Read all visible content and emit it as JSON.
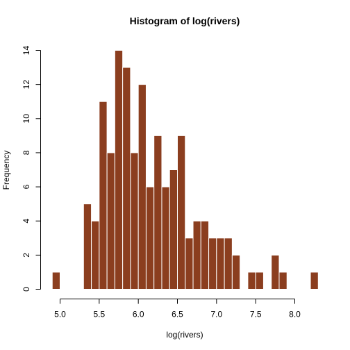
{
  "chart_data": {
    "type": "bar",
    "title": "Histogram of log(rivers)",
    "xlabel": "log(rivers)",
    "ylabel": "Frequency",
    "bar_color": "#8B3E1F",
    "bar_border_color": "#ffffff",
    "bin_width": 0.1,
    "bins": [
      {
        "start": 4.9,
        "end": 5.0,
        "count": 1
      },
      {
        "start": 5.0,
        "end": 5.1,
        "count": 0
      },
      {
        "start": 5.1,
        "end": 5.2,
        "count": 0
      },
      {
        "start": 5.2,
        "end": 5.3,
        "count": 0
      },
      {
        "start": 5.3,
        "end": 5.4,
        "count": 5
      },
      {
        "start": 5.4,
        "end": 5.5,
        "count": 4
      },
      {
        "start": 5.5,
        "end": 5.6,
        "count": 11
      },
      {
        "start": 5.6,
        "end": 5.7,
        "count": 8
      },
      {
        "start": 5.7,
        "end": 5.8,
        "count": 14
      },
      {
        "start": 5.8,
        "end": 5.9,
        "count": 13
      },
      {
        "start": 5.9,
        "end": 6.0,
        "count": 8
      },
      {
        "start": 6.0,
        "end": 6.1,
        "count": 12
      },
      {
        "start": 6.1,
        "end": 6.2,
        "count": 6
      },
      {
        "start": 6.2,
        "end": 6.3,
        "count": 9
      },
      {
        "start": 6.3,
        "end": 6.4,
        "count": 6
      },
      {
        "start": 6.4,
        "end": 6.5,
        "count": 7
      },
      {
        "start": 6.5,
        "end": 6.6,
        "count": 9
      },
      {
        "start": 6.6,
        "end": 6.7,
        "count": 3
      },
      {
        "start": 6.7,
        "end": 6.8,
        "count": 4
      },
      {
        "start": 6.8,
        "end": 6.9,
        "count": 4
      },
      {
        "start": 6.9,
        "end": 7.0,
        "count": 3
      },
      {
        "start": 7.0,
        "end": 7.1,
        "count": 3
      },
      {
        "start": 7.1,
        "end": 7.2,
        "count": 3
      },
      {
        "start": 7.2,
        "end": 7.3,
        "count": 2
      },
      {
        "start": 7.3,
        "end": 7.4,
        "count": 0
      },
      {
        "start": 7.4,
        "end": 7.5,
        "count": 1
      },
      {
        "start": 7.5,
        "end": 7.6,
        "count": 1
      },
      {
        "start": 7.6,
        "end": 7.7,
        "count": 0
      },
      {
        "start": 7.7,
        "end": 7.8,
        "count": 2
      },
      {
        "start": 7.8,
        "end": 7.9,
        "count": 1
      },
      {
        "start": 7.9,
        "end": 8.0,
        "count": 0
      },
      {
        "start": 8.0,
        "end": 8.1,
        "count": 0
      },
      {
        "start": 8.1,
        "end": 8.2,
        "count": 0
      },
      {
        "start": 8.2,
        "end": 8.3,
        "count": 1
      }
    ],
    "xlim": [
      4.9,
      8.3
    ],
    "ylim": [
      0,
      14
    ],
    "x_ticks": [
      5.0,
      5.5,
      6.0,
      6.5,
      7.0,
      7.5,
      8.0
    ],
    "x_tick_labels": [
      "5.0",
      "5.5",
      "6.0",
      "6.5",
      "7.0",
      "7.5",
      "8.0"
    ],
    "y_ticks": [
      0,
      2,
      4,
      6,
      8,
      10,
      12,
      14
    ],
    "y_tick_labels": [
      "0",
      "2",
      "4",
      "6",
      "8",
      "10",
      "12",
      "14"
    ],
    "grid": false
  }
}
